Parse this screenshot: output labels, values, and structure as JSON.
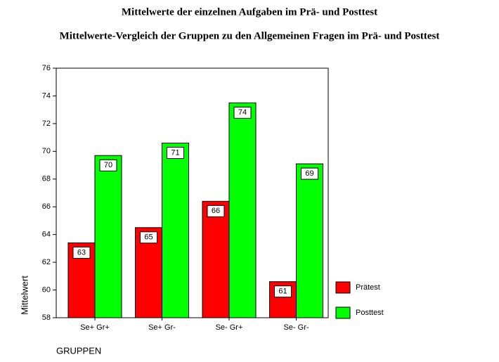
{
  "chart_data": {
    "type": "bar",
    "title": "Mittelwerte der einzelnen Aufgaben im Prä- und Posttest",
    "subtitle": "Mittelwerte-Vergleich der Gruppen zu den Allgemeinen Fragen im Prä- und Posttest",
    "x_label": "GRUPPEN",
    "y_label": "Mittelwert",
    "categories": [
      "Se+ Gr+",
      "Se+ Gr-",
      "Se- Gr+",
      "Se- Gr-"
    ],
    "series": [
      {
        "name": "Prätest",
        "color": "#ff0000",
        "values": [
          63.4,
          64.5,
          66.4,
          60.6
        ],
        "value_labels": [
          "63",
          "65",
          "66",
          "61"
        ]
      },
      {
        "name": "Posttest",
        "color": "#00ff00",
        "values": [
          69.7,
          70.6,
          73.5,
          69.1
        ],
        "value_labels": [
          "70",
          "71",
          "74",
          "69"
        ]
      }
    ],
    "ylim": [
      58,
      76
    ],
    "yticks": [
      58,
      60,
      62,
      64,
      66,
      68,
      70,
      72,
      74,
      76
    ],
    "legend": "right"
  }
}
